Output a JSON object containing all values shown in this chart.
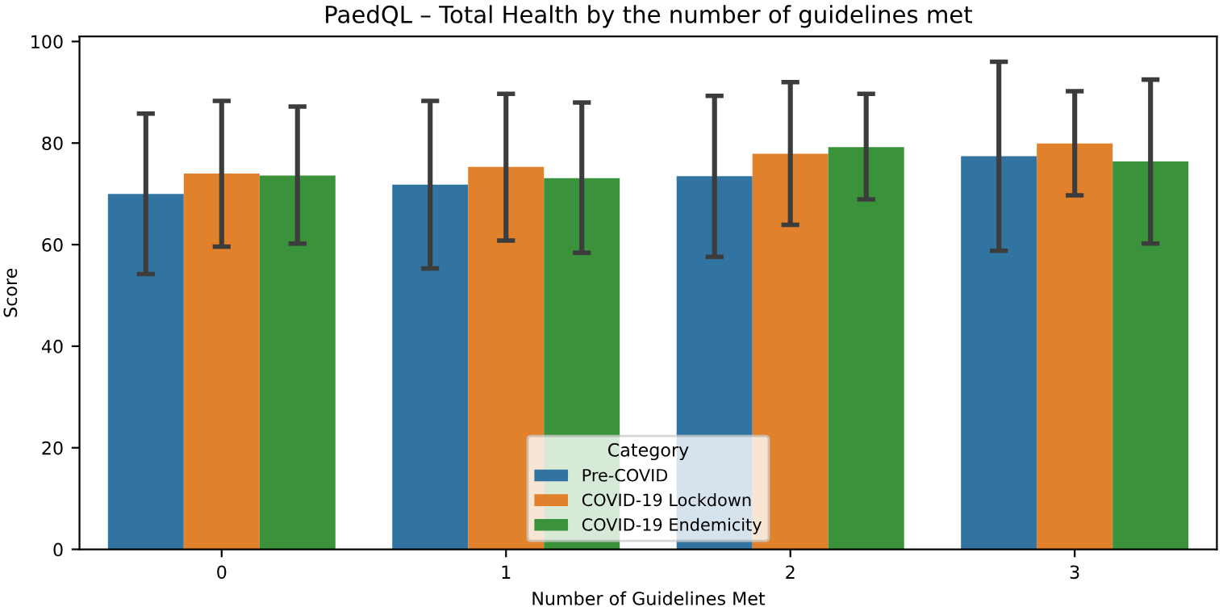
{
  "chart_data": {
    "type": "bar",
    "title": "PaedQL – Total Health by the number of guidelines met",
    "xlabel": "Number of Guidelines Met",
    "ylabel": "Score",
    "legend_title": "Category",
    "categories": [
      "0",
      "1",
      "2",
      "3"
    ],
    "series": [
      {
        "name": "Pre-COVID",
        "color": "#3274a1",
        "values": [
          70.0,
          71.8,
          73.5,
          77.4
        ],
        "errors": [
          [
            54.2,
            85.8
          ],
          [
            55.3,
            88.3
          ],
          [
            57.6,
            89.3
          ],
          [
            58.8,
            96.0
          ]
        ]
      },
      {
        "name": "COVID-19 Lockdown",
        "color": "#e1812c",
        "values": [
          74.0,
          75.3,
          77.9,
          79.9
        ],
        "errors": [
          [
            59.6,
            88.3
          ],
          [
            60.8,
            89.7
          ],
          [
            63.9,
            92.0
          ],
          [
            69.7,
            90.2
          ]
        ]
      },
      {
        "name": "COVID-19 Endemicity",
        "color": "#3a923a",
        "values": [
          73.6,
          73.1,
          79.2,
          76.4
        ],
        "errors": [
          [
            60.2,
            87.2
          ],
          [
            58.4,
            88.0
          ],
          [
            68.9,
            89.7
          ],
          [
            60.2,
            92.5
          ]
        ]
      }
    ],
    "ylim": [
      0,
      101
    ],
    "yticks": [
      0,
      20,
      40,
      60,
      80,
      100
    ],
    "grid": false,
    "legend": "bottom"
  }
}
